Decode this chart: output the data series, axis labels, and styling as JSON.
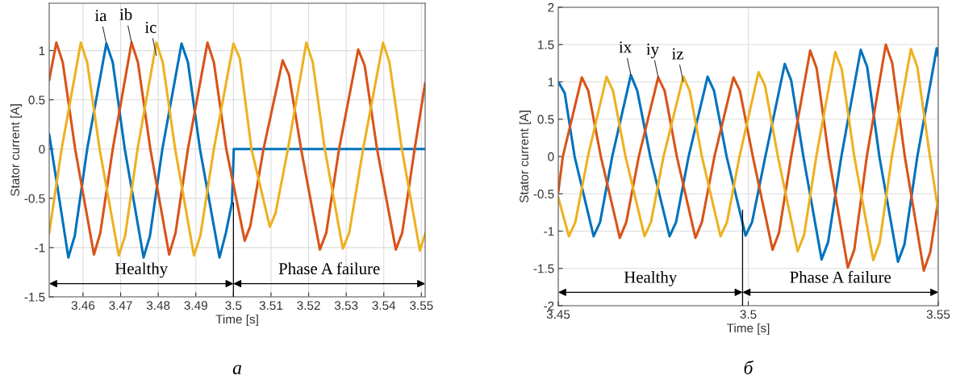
{
  "chart_data": [
    {
      "type": "line",
      "xlabel": "Time [s]",
      "ylabel": "Stator current [A]",
      "xlim": [
        3.451,
        3.551
      ],
      "ylim": [
        -1.5,
        1.48
      ],
      "xticks": [
        3.46,
        3.47,
        3.48,
        3.49,
        3.5,
        3.51,
        3.52,
        3.53,
        3.54,
        3.55
      ],
      "yticks": [
        -1.5,
        -1,
        -0.5,
        0,
        0.5,
        1
      ],
      "grid": true,
      "marker": "none",
      "line_style": "solid",
      "series": [
        {
          "color": "#0072bd",
          "x": [
            3.451,
            3.4561,
            3.4578,
            3.4611,
            3.4662,
            3.4679,
            3.4711,
            3.4761,
            3.4778,
            3.4811,
            3.4862,
            3.4879,
            3.4911,
            3.4963,
            3.498,
            3.4996,
            3.5001,
            3.551
          ],
          "values": [
            0.15,
            -1.1,
            -0.88,
            0.0,
            1.07,
            0.88,
            0.0,
            -1.1,
            -0.88,
            0.0,
            1.07,
            0.88,
            0.0,
            -1.1,
            -0.85,
            -0.55,
            0.0,
            0.0
          ]
        },
        {
          "color": "#d95319",
          "x": [
            3.451,
            3.4529,
            3.4546,
            3.4579,
            3.4629,
            3.4646,
            3.4679,
            3.4729,
            3.4746,
            3.4779,
            3.4829,
            3.4846,
            3.4879,
            3.4931,
            3.4948,
            3.4981,
            3.503,
            3.5045,
            3.508,
            3.5131,
            3.5148,
            3.518,
            3.523,
            3.5247,
            3.5281,
            3.5332,
            3.5349,
            3.5382,
            3.5432,
            3.5449,
            3.5482,
            3.551
          ],
          "values": [
            0.7,
            1.08,
            0.88,
            0.0,
            -1.07,
            -0.85,
            0.0,
            1.08,
            0.88,
            0.0,
            -1.07,
            -0.85,
            0.0,
            1.08,
            0.88,
            0.0,
            -0.93,
            -0.78,
            0.0,
            0.9,
            0.75,
            0.0,
            -1.02,
            -0.85,
            0.0,
            1.01,
            0.85,
            0.0,
            -1.02,
            -0.85,
            0.0,
            0.67
          ]
        },
        {
          "color": "#edb120",
          "x": [
            3.451,
            3.4543,
            3.4594,
            3.4611,
            3.4644,
            3.4695,
            3.4712,
            3.4745,
            3.4795,
            3.4812,
            3.4845,
            3.4895,
            3.4912,
            3.4948,
            3.5,
            3.5017,
            3.5048,
            3.5097,
            3.5112,
            3.5145,
            3.5194,
            3.5211,
            3.5243,
            3.5291,
            3.5308,
            3.5345,
            3.5398,
            3.5415,
            3.5448,
            3.5496,
            3.551
          ],
          "values": [
            -0.85,
            0.0,
            1.08,
            0.88,
            0.0,
            -1.08,
            -0.88,
            0.0,
            1.08,
            0.88,
            0.0,
            -1.08,
            -0.88,
            0.0,
            1.07,
            0.92,
            0.0,
            -0.79,
            -0.65,
            0.0,
            1.08,
            0.88,
            0.0,
            -1.01,
            -0.85,
            0.0,
            1.08,
            0.88,
            0.0,
            -1.03,
            -0.86
          ]
        }
      ],
      "ref_lines": [
        {
          "axis": "x",
          "value": 3.5,
          "color": "#000000"
        }
      ],
      "annotations": [
        {
          "text": "ia",
          "x": 3.4662,
          "y": 1.07
        },
        {
          "text": "ib",
          "x": 3.4729,
          "y": 1.08
        },
        {
          "text": "ic",
          "x": 3.4795,
          "y": 0.95
        },
        "Healthy",
        "Phase A failure",
        "а"
      ]
    },
    {
      "type": "line",
      "xlabel": "Time [s]",
      "ylabel": "Stator current [A]",
      "xlim": [
        3.45,
        3.55
      ],
      "ylim": [
        -2,
        2
      ],
      "xticks": [
        3.45,
        3.5,
        3.55
      ],
      "yticks": [
        -2,
        -1.5,
        -1,
        -0.5,
        0,
        0.5,
        1,
        1.5,
        2
      ],
      "grid": true,
      "marker": "none",
      "line_style": "solid",
      "series": [
        {
          "color": "#0072bd",
          "x": [
            3.45,
            3.4517,
            3.4543,
            3.4593,
            3.461,
            3.4642,
            3.4691,
            3.4708,
            3.4742,
            3.4793,
            3.481,
            3.4843,
            3.4893,
            3.491,
            3.4943,
            3.4993,
            3.501,
            3.5045,
            3.5096,
            3.5113,
            3.5145,
            3.5193,
            3.521,
            3.5245,
            3.5296,
            3.5313,
            3.5345,
            3.5394,
            3.5411,
            3.5445,
            3.5496,
            3.55
          ],
          "values": [
            1.0,
            0.85,
            0.0,
            -1.07,
            -0.88,
            0.0,
            1.09,
            0.88,
            0.0,
            -1.07,
            -0.88,
            0.0,
            1.07,
            0.88,
            0.0,
            -1.06,
            -0.88,
            0.0,
            1.24,
            1.02,
            0.0,
            -1.38,
            -1.15,
            0.0,
            1.43,
            1.2,
            0.0,
            -1.41,
            -1.18,
            0.0,
            1.45,
            1.35
          ]
        },
        {
          "color": "#d95319",
          "x": [
            3.45,
            3.4512,
            3.4562,
            3.4579,
            3.4612,
            3.4662,
            3.4679,
            3.4712,
            3.4763,
            3.478,
            3.4812,
            3.4861,
            3.4878,
            3.4911,
            3.4961,
            3.4978,
            3.5012,
            3.5064,
            3.5081,
            3.5113,
            3.5163,
            3.518,
            3.5212,
            3.5262,
            3.5279,
            3.5312,
            3.5362,
            3.5379,
            3.5412,
            3.5462,
            3.5479,
            3.55
          ],
          "values": [
            -0.48,
            0.0,
            1.06,
            0.88,
            0.0,
            -1.09,
            -0.88,
            0.0,
            1.06,
            0.88,
            0.0,
            -1.09,
            -0.88,
            0.0,
            1.06,
            0.88,
            0.0,
            -1.25,
            -1.02,
            0.0,
            1.42,
            1.18,
            0.0,
            -1.49,
            -1.25,
            0.0,
            1.5,
            1.25,
            0.0,
            -1.53,
            -1.28,
            -0.58
          ]
        },
        {
          "color": "#edb120",
          "x": [
            3.45,
            3.4528,
            3.4545,
            3.4578,
            3.4627,
            3.4644,
            3.4677,
            3.4727,
            3.4744,
            3.4777,
            3.4829,
            3.4846,
            3.4878,
            3.4927,
            3.4944,
            3.4977,
            3.5027,
            3.5044,
            3.5078,
            3.513,
            3.5147,
            3.5179,
            3.5229,
            3.5246,
            3.5279,
            3.5329,
            3.5346,
            3.5378,
            3.5428,
            3.5445,
            3.5478,
            3.55
          ],
          "values": [
            -0.55,
            -1.07,
            -0.88,
            0.0,
            1.07,
            0.88,
            0.0,
            -1.07,
            -0.88,
            0.0,
            1.07,
            0.88,
            0.0,
            -1.07,
            -0.88,
            0.0,
            1.13,
            0.95,
            0.0,
            -1.27,
            -1.05,
            0.0,
            1.4,
            1.17,
            0.0,
            -1.39,
            -1.15,
            0.0,
            1.44,
            1.2,
            0.0,
            -0.73
          ]
        }
      ],
      "ref_lines": [
        {
          "axis": "x",
          "value": 3.4985,
          "color": "#000000"
        }
      ],
      "annotations": [
        {
          "text": "ix",
          "x": 3.4691,
          "y": 1.09
        },
        {
          "text": "iy",
          "x": 3.4763,
          "y": 1.06
        },
        {
          "text": "iz",
          "x": 3.4829,
          "y": 1.0
        },
        "Healthy",
        "Phase A failure",
        "б"
      ]
    }
  ]
}
